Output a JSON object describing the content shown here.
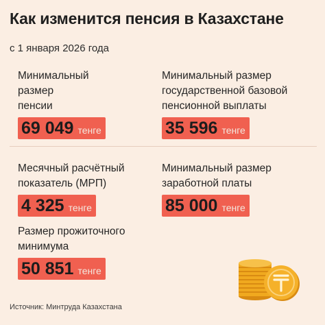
{
  "title": "Как изменится пенсия в Казахстане",
  "subtitle": "с 1 января 2026 года",
  "stats": [
    {
      "label_lines": [
        "Минимальный",
        "размер",
        "пенсии"
      ],
      "value": "69 049",
      "unit": "тенге"
    },
    {
      "label_lines": [
        "Минимальный размер",
        "государственной базовой",
        "пенсионной выплаты"
      ],
      "value": "35 596",
      "unit": "тенге"
    },
    {
      "label_lines": [
        "Месячный расчётный",
        "показатель (МРП)"
      ],
      "value": "4 325",
      "unit": "тенге"
    },
    {
      "label_lines": [
        "Минимальный размер",
        "заработной платы"
      ],
      "value": "85 000",
      "unit": "тенге"
    },
    {
      "label_lines": [
        "Размер прожиточного",
        "минимума"
      ],
      "value": "50 851",
      "unit": "тенге"
    }
  ],
  "source": "Источник: Минтруда Казахстана",
  "colors": {
    "background": "#fbeee3",
    "accent": "#f06050",
    "coin": "#f5b12a"
  },
  "icons": [
    "tenge-coin-icon"
  ]
}
